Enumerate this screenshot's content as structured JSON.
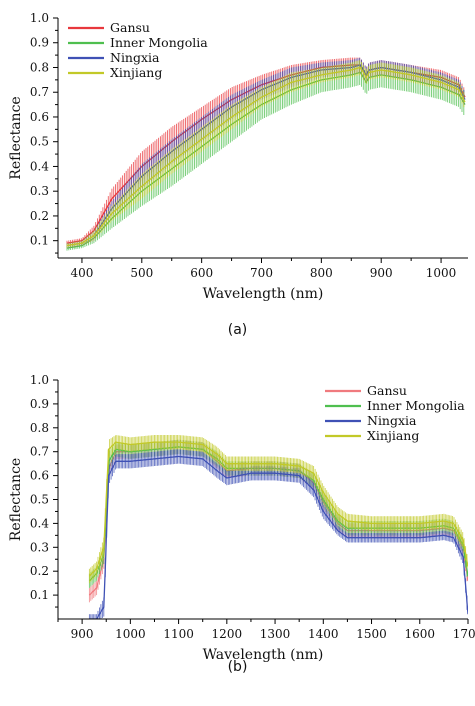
{
  "chart_data": [
    {
      "type": "line",
      "panel_label": "(a)",
      "xlabel": "Wavelength (nm)",
      "ylabel": "Reflectance",
      "xlim": [
        360,
        1045
      ],
      "ylim": [
        0.03,
        1.0
      ],
      "xticks": [
        400,
        500,
        600,
        700,
        800,
        900,
        1000
      ],
      "yticks": [
        0.1,
        0.2,
        0.3,
        0.4,
        0.5,
        0.6,
        0.7,
        0.8,
        0.9,
        1.0
      ],
      "ytick_labels": [
        "0.1",
        "0.2",
        "0.3",
        "0.4",
        "0.5",
        "0.6",
        "0.7",
        "0.8",
        "0.9",
        "1.0"
      ],
      "legend_position": "top-left",
      "error_bars": true,
      "series": [
        {
          "name": "Gansu",
          "color": "#e8383d",
          "x": [
            375,
            400,
            420,
            450,
            500,
            550,
            600,
            650,
            700,
            750,
            800,
            850,
            865,
            875,
            880,
            900,
            950,
            1000,
            1030,
            1040
          ],
          "y": [
            0.09,
            0.1,
            0.14,
            0.27,
            0.4,
            0.5,
            0.59,
            0.67,
            0.73,
            0.77,
            0.8,
            0.81,
            0.81,
            0.77,
            0.79,
            0.8,
            0.78,
            0.76,
            0.73,
            0.68
          ],
          "err": [
            0.01,
            0.01,
            0.02,
            0.04,
            0.06,
            0.06,
            0.05,
            0.05,
            0.04,
            0.04,
            0.03,
            0.03,
            0.03,
            0.03,
            0.03,
            0.03,
            0.03,
            0.03,
            0.03,
            0.03
          ]
        },
        {
          "name": "Inner Mongolia",
          "color": "#4fbf4f",
          "x": [
            375,
            400,
            420,
            450,
            500,
            550,
            600,
            650,
            700,
            750,
            800,
            850,
            865,
            875,
            880,
            900,
            950,
            1000,
            1030,
            1040
          ],
          "y": [
            0.07,
            0.08,
            0.11,
            0.19,
            0.3,
            0.39,
            0.48,
            0.57,
            0.65,
            0.71,
            0.75,
            0.77,
            0.78,
            0.74,
            0.76,
            0.77,
            0.75,
            0.72,
            0.69,
            0.65
          ],
          "err": [
            0.01,
            0.01,
            0.02,
            0.04,
            0.06,
            0.07,
            0.07,
            0.07,
            0.06,
            0.06,
            0.05,
            0.05,
            0.05,
            0.05,
            0.05,
            0.05,
            0.05,
            0.05,
            0.05,
            0.05
          ]
        },
        {
          "name": "Ningxia",
          "color": "#3f51b5",
          "x": [
            375,
            400,
            420,
            450,
            500,
            550,
            600,
            650,
            700,
            750,
            800,
            850,
            865,
            875,
            880,
            900,
            950,
            1000,
            1030,
            1040
          ],
          "y": [
            0.08,
            0.09,
            0.12,
            0.23,
            0.36,
            0.46,
            0.55,
            0.64,
            0.71,
            0.76,
            0.79,
            0.8,
            0.81,
            0.77,
            0.79,
            0.8,
            0.78,
            0.75,
            0.72,
            0.67
          ],
          "err": [
            0.01,
            0.01,
            0.02,
            0.03,
            0.05,
            0.05,
            0.05,
            0.05,
            0.04,
            0.04,
            0.03,
            0.03,
            0.03,
            0.03,
            0.03,
            0.03,
            0.03,
            0.03,
            0.03,
            0.03
          ]
        },
        {
          "name": "Xinjiang",
          "color": "#c2c928",
          "x": [
            375,
            400,
            420,
            450,
            500,
            550,
            600,
            650,
            700,
            750,
            800,
            850,
            865,
            875,
            880,
            900,
            950,
            1000,
            1030,
            1040
          ],
          "y": [
            0.08,
            0.09,
            0.12,
            0.21,
            0.32,
            0.42,
            0.51,
            0.6,
            0.68,
            0.74,
            0.77,
            0.79,
            0.8,
            0.76,
            0.78,
            0.79,
            0.77,
            0.74,
            0.71,
            0.66
          ],
          "err": [
            0.01,
            0.01,
            0.02,
            0.03,
            0.05,
            0.05,
            0.05,
            0.05,
            0.04,
            0.04,
            0.03,
            0.03,
            0.03,
            0.03,
            0.03,
            0.03,
            0.03,
            0.03,
            0.03,
            0.03
          ]
        }
      ]
    },
    {
      "type": "line",
      "panel_label": "(b)",
      "xlabel": "Wavelength (nm)",
      "ylabel": "Reflectance",
      "xlim": [
        850,
        1700
      ],
      "ylim": [
        0.0,
        1.0
      ],
      "xticks": [
        900,
        1000,
        1100,
        1200,
        1300,
        1400,
        1500,
        1600,
        1700
      ],
      "xtick_labels": [
        "900",
        "1000",
        "1100",
        "1200",
        "1300",
        "1400",
        "1500",
        "1600",
        "1700"
      ],
      "yticks": [
        0.1,
        0.2,
        0.3,
        0.4,
        0.5,
        0.6,
        0.7,
        0.8,
        0.9,
        1.0
      ],
      "ytick_labels": [
        "0.1",
        "0.2",
        "0.3",
        "0.4",
        "0.5",
        "0.6",
        "0.7",
        "0.8",
        "0.9",
        "1.0"
      ],
      "legend_position": "top-right",
      "error_bars": true,
      "series": [
        {
          "name": "Gansu",
          "color": "#f07a7e",
          "x": [
            915,
            930,
            945,
            955,
            970,
            1000,
            1050,
            1100,
            1150,
            1180,
            1200,
            1250,
            1300,
            1350,
            1380,
            1400,
            1430,
            1450,
            1500,
            1550,
            1600,
            1650,
            1670,
            1690,
            1700
          ],
          "y": [
            0.1,
            0.13,
            0.25,
            0.63,
            0.7,
            0.7,
            0.71,
            0.72,
            0.71,
            0.66,
            0.62,
            0.63,
            0.63,
            0.62,
            0.57,
            0.49,
            0.4,
            0.37,
            0.37,
            0.37,
            0.37,
            0.38,
            0.37,
            0.3,
            0.16
          ],
          "err": [
            0.03,
            0.03,
            0.04,
            0.04,
            0.03,
            0.03,
            0.03,
            0.03,
            0.03,
            0.03,
            0.03,
            0.03,
            0.03,
            0.03,
            0.03,
            0.03,
            0.03,
            0.03,
            0.03,
            0.03,
            0.03,
            0.03,
            0.03,
            0.03,
            0.03
          ]
        },
        {
          "name": "Inner Mongolia",
          "color": "#4fbf4f",
          "x": [
            915,
            930,
            945,
            955,
            970,
            1000,
            1050,
            1100,
            1150,
            1180,
            1200,
            1250,
            1300,
            1350,
            1380,
            1400,
            1430,
            1450,
            1500,
            1550,
            1600,
            1650,
            1670,
            1690,
            1700
          ],
          "y": [
            0.16,
            0.19,
            0.27,
            0.66,
            0.71,
            0.7,
            0.71,
            0.72,
            0.71,
            0.67,
            0.63,
            0.63,
            0.63,
            0.62,
            0.58,
            0.5,
            0.41,
            0.38,
            0.38,
            0.38,
            0.38,
            0.39,
            0.38,
            0.31,
            0.18
          ],
          "err": [
            0.03,
            0.03,
            0.04,
            0.04,
            0.03,
            0.03,
            0.03,
            0.03,
            0.03,
            0.03,
            0.03,
            0.03,
            0.03,
            0.03,
            0.03,
            0.03,
            0.03,
            0.03,
            0.03,
            0.03,
            0.03,
            0.03,
            0.03,
            0.03,
            0.03
          ]
        },
        {
          "name": "Ningxia",
          "color": "#3f51b5",
          "x": [
            915,
            930,
            945,
            955,
            970,
            1000,
            1050,
            1100,
            1150,
            1180,
            1200,
            1250,
            1300,
            1350,
            1380,
            1400,
            1430,
            1450,
            1500,
            1550,
            1600,
            1650,
            1670,
            1690,
            1700
          ],
          "y": [
            0.0,
            0.0,
            0.05,
            0.6,
            0.66,
            0.66,
            0.67,
            0.68,
            0.67,
            0.62,
            0.59,
            0.61,
            0.61,
            0.6,
            0.54,
            0.45,
            0.37,
            0.34,
            0.34,
            0.34,
            0.34,
            0.35,
            0.34,
            0.26,
            0.02
          ],
          "err": [
            0.02,
            0.02,
            0.04,
            0.04,
            0.03,
            0.03,
            0.03,
            0.03,
            0.03,
            0.03,
            0.03,
            0.03,
            0.03,
            0.03,
            0.03,
            0.03,
            0.02,
            0.02,
            0.02,
            0.02,
            0.02,
            0.02,
            0.02,
            0.03,
            0.03
          ]
        },
        {
          "name": "Xinjiang",
          "color": "#c2c928",
          "x": [
            915,
            930,
            945,
            955,
            970,
            1000,
            1050,
            1100,
            1150,
            1180,
            1200,
            1250,
            1300,
            1350,
            1380,
            1400,
            1430,
            1450,
            1500,
            1550,
            1600,
            1650,
            1670,
            1690,
            1700
          ],
          "y": [
            0.18,
            0.21,
            0.3,
            0.71,
            0.74,
            0.73,
            0.74,
            0.74,
            0.73,
            0.69,
            0.65,
            0.65,
            0.65,
            0.64,
            0.61,
            0.53,
            0.44,
            0.41,
            0.4,
            0.4,
            0.4,
            0.41,
            0.4,
            0.33,
            0.22
          ],
          "err": [
            0.03,
            0.03,
            0.04,
            0.04,
            0.03,
            0.03,
            0.03,
            0.03,
            0.03,
            0.03,
            0.03,
            0.03,
            0.03,
            0.03,
            0.03,
            0.03,
            0.03,
            0.03,
            0.03,
            0.03,
            0.03,
            0.03,
            0.03,
            0.03,
            0.03
          ]
        }
      ]
    }
  ]
}
